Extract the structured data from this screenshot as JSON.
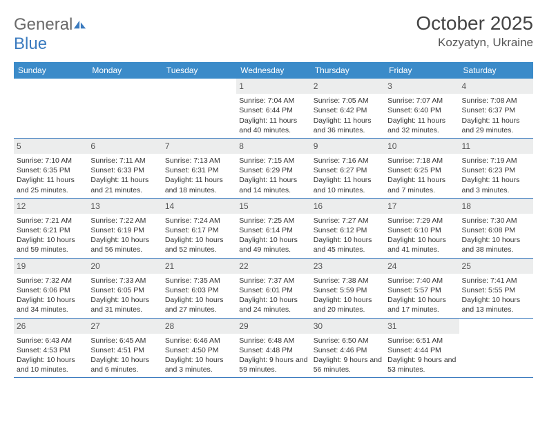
{
  "logo": {
    "word1": "General",
    "word2": "Blue"
  },
  "title": "October 2025",
  "location": "Kozyatyn, Ukraine",
  "colors": {
    "header_bg": "#3b8bc9",
    "border": "#3b7bbf",
    "daynum_bg": "#eceded",
    "logo_gray": "#6a6a6a",
    "logo_blue": "#3b7bbf"
  },
  "dow": [
    "Sunday",
    "Monday",
    "Tuesday",
    "Wednesday",
    "Thursday",
    "Friday",
    "Saturday"
  ],
  "weeks": [
    [
      {
        "n": "",
        "sr": "",
        "ss": "",
        "dl": ""
      },
      {
        "n": "",
        "sr": "",
        "ss": "",
        "dl": ""
      },
      {
        "n": "",
        "sr": "",
        "ss": "",
        "dl": ""
      },
      {
        "n": "1",
        "sr": "7:04 AM",
        "ss": "6:44 PM",
        "dl": "11 hours and 40 minutes."
      },
      {
        "n": "2",
        "sr": "7:05 AM",
        "ss": "6:42 PM",
        "dl": "11 hours and 36 minutes."
      },
      {
        "n": "3",
        "sr": "7:07 AM",
        "ss": "6:40 PM",
        "dl": "11 hours and 32 minutes."
      },
      {
        "n": "4",
        "sr": "7:08 AM",
        "ss": "6:37 PM",
        "dl": "11 hours and 29 minutes."
      }
    ],
    [
      {
        "n": "5",
        "sr": "7:10 AM",
        "ss": "6:35 PM",
        "dl": "11 hours and 25 minutes."
      },
      {
        "n": "6",
        "sr": "7:11 AM",
        "ss": "6:33 PM",
        "dl": "11 hours and 21 minutes."
      },
      {
        "n": "7",
        "sr": "7:13 AM",
        "ss": "6:31 PM",
        "dl": "11 hours and 18 minutes."
      },
      {
        "n": "8",
        "sr": "7:15 AM",
        "ss": "6:29 PM",
        "dl": "11 hours and 14 minutes."
      },
      {
        "n": "9",
        "sr": "7:16 AM",
        "ss": "6:27 PM",
        "dl": "11 hours and 10 minutes."
      },
      {
        "n": "10",
        "sr": "7:18 AM",
        "ss": "6:25 PM",
        "dl": "11 hours and 7 minutes."
      },
      {
        "n": "11",
        "sr": "7:19 AM",
        "ss": "6:23 PM",
        "dl": "11 hours and 3 minutes."
      }
    ],
    [
      {
        "n": "12",
        "sr": "7:21 AM",
        "ss": "6:21 PM",
        "dl": "10 hours and 59 minutes."
      },
      {
        "n": "13",
        "sr": "7:22 AM",
        "ss": "6:19 PM",
        "dl": "10 hours and 56 minutes."
      },
      {
        "n": "14",
        "sr": "7:24 AM",
        "ss": "6:17 PM",
        "dl": "10 hours and 52 minutes."
      },
      {
        "n": "15",
        "sr": "7:25 AM",
        "ss": "6:14 PM",
        "dl": "10 hours and 49 minutes."
      },
      {
        "n": "16",
        "sr": "7:27 AM",
        "ss": "6:12 PM",
        "dl": "10 hours and 45 minutes."
      },
      {
        "n": "17",
        "sr": "7:29 AM",
        "ss": "6:10 PM",
        "dl": "10 hours and 41 minutes."
      },
      {
        "n": "18",
        "sr": "7:30 AM",
        "ss": "6:08 PM",
        "dl": "10 hours and 38 minutes."
      }
    ],
    [
      {
        "n": "19",
        "sr": "7:32 AM",
        "ss": "6:06 PM",
        "dl": "10 hours and 34 minutes."
      },
      {
        "n": "20",
        "sr": "7:33 AM",
        "ss": "6:05 PM",
        "dl": "10 hours and 31 minutes."
      },
      {
        "n": "21",
        "sr": "7:35 AM",
        "ss": "6:03 PM",
        "dl": "10 hours and 27 minutes."
      },
      {
        "n": "22",
        "sr": "7:37 AM",
        "ss": "6:01 PM",
        "dl": "10 hours and 24 minutes."
      },
      {
        "n": "23",
        "sr": "7:38 AM",
        "ss": "5:59 PM",
        "dl": "10 hours and 20 minutes."
      },
      {
        "n": "24",
        "sr": "7:40 AM",
        "ss": "5:57 PM",
        "dl": "10 hours and 17 minutes."
      },
      {
        "n": "25",
        "sr": "7:41 AM",
        "ss": "5:55 PM",
        "dl": "10 hours and 13 minutes."
      }
    ],
    [
      {
        "n": "26",
        "sr": "6:43 AM",
        "ss": "4:53 PM",
        "dl": "10 hours and 10 minutes."
      },
      {
        "n": "27",
        "sr": "6:45 AM",
        "ss": "4:51 PM",
        "dl": "10 hours and 6 minutes."
      },
      {
        "n": "28",
        "sr": "6:46 AM",
        "ss": "4:50 PM",
        "dl": "10 hours and 3 minutes."
      },
      {
        "n": "29",
        "sr": "6:48 AM",
        "ss": "4:48 PM",
        "dl": "9 hours and 59 minutes."
      },
      {
        "n": "30",
        "sr": "6:50 AM",
        "ss": "4:46 PM",
        "dl": "9 hours and 56 minutes."
      },
      {
        "n": "31",
        "sr": "6:51 AM",
        "ss": "4:44 PM",
        "dl": "9 hours and 53 minutes."
      },
      {
        "n": "",
        "sr": "",
        "ss": "",
        "dl": ""
      }
    ]
  ]
}
